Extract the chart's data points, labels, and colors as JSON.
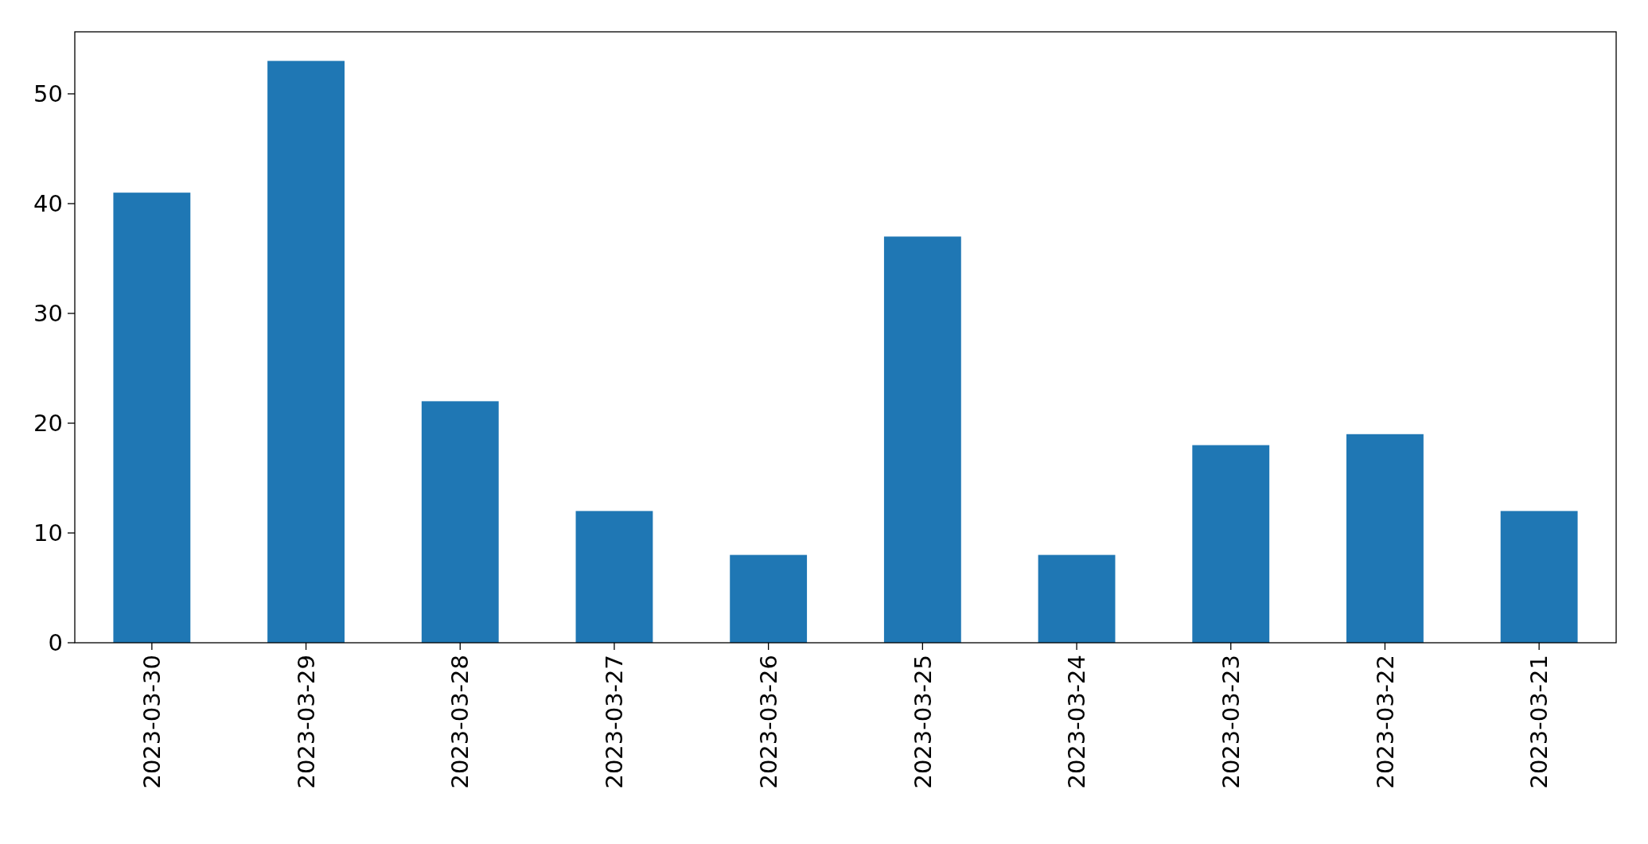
{
  "chart_data": {
    "type": "bar",
    "categories": [
      "2023-03-30",
      "2023-03-29",
      "2023-03-28",
      "2023-03-27",
      "2023-03-26",
      "2023-03-25",
      "2023-03-24",
      "2023-03-23",
      "2023-03-22",
      "2023-03-21"
    ],
    "values": [
      41,
      53,
      22,
      12,
      8,
      37,
      8,
      18,
      19,
      12
    ],
    "color": "#1f77b4",
    "ylim": [
      0,
      55.65
    ],
    "yticks": [
      0,
      10,
      20,
      30,
      40,
      50
    ]
  }
}
